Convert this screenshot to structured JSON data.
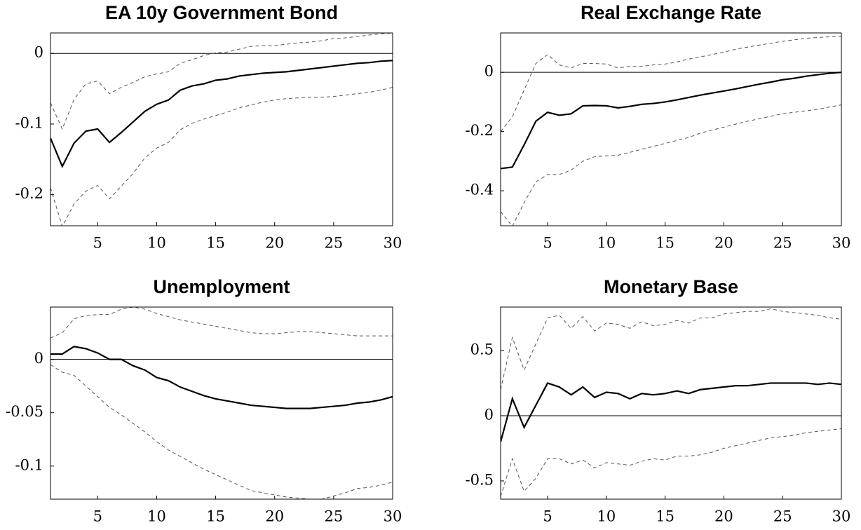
{
  "chart_data": [
    {
      "type": "line",
      "title": "EA 10y Government Bond",
      "x": [
        1,
        2,
        3,
        4,
        5,
        6,
        7,
        8,
        9,
        10,
        11,
        12,
        13,
        14,
        15,
        16,
        17,
        18,
        19,
        20,
        21,
        22,
        23,
        24,
        25,
        26,
        27,
        28,
        29,
        30
      ],
      "xlim": [
        1,
        30
      ],
      "xticks": [
        5,
        10,
        15,
        20,
        25,
        30
      ],
      "ylim": [
        -0.244,
        0.029
      ],
      "yticks": [
        0,
        -0.1,
        -0.2
      ],
      "zero_line": true,
      "series": [
        {
          "color": "#000000",
          "style": "solid",
          "values": [
            -0.12,
            -0.16,
            -0.127,
            -0.11,
            -0.107,
            -0.126,
            -0.112,
            -0.097,
            -0.082,
            -0.072,
            -0.066,
            -0.052,
            -0.046,
            -0.043,
            -0.038,
            -0.036,
            -0.032,
            -0.03,
            -0.028,
            -0.027,
            -0.026,
            -0.024,
            -0.022,
            -0.02,
            -0.018,
            -0.016,
            -0.014,
            -0.013,
            -0.011,
            -0.01
          ]
        },
        {
          "color": "#555555",
          "style": "dashed",
          "values": [
            -0.07,
            -0.107,
            -0.065,
            -0.043,
            -0.039,
            -0.057,
            -0.048,
            -0.041,
            -0.033,
            -0.029,
            -0.026,
            -0.014,
            -0.009,
            -0.003,
            0.001,
            0.002,
            0.006,
            0.01,
            0.011,
            0.011,
            0.013,
            0.015,
            0.016,
            0.018,
            0.021,
            0.022,
            0.024,
            0.026,
            0.028,
            0.029
          ]
        },
        {
          "color": "#555555",
          "style": "dashed",
          "values": [
            -0.19,
            -0.245,
            -0.213,
            -0.195,
            -0.187,
            -0.206,
            -0.188,
            -0.17,
            -0.148,
            -0.134,
            -0.126,
            -0.108,
            -0.099,
            -0.093,
            -0.088,
            -0.083,
            -0.077,
            -0.073,
            -0.069,
            -0.066,
            -0.064,
            -0.063,
            -0.062,
            -0.062,
            -0.061,
            -0.059,
            -0.057,
            -0.055,
            -0.052,
            -0.048
          ]
        }
      ]
    },
    {
      "type": "line",
      "title": "Real Exchange Rate",
      "x": [
        1,
        2,
        3,
        4,
        5,
        6,
        7,
        8,
        9,
        10,
        11,
        12,
        13,
        14,
        15,
        16,
        17,
        18,
        19,
        20,
        21,
        22,
        23,
        24,
        25,
        26,
        27,
        28,
        29,
        30
      ],
      "xlim": [
        1,
        30
      ],
      "xticks": [
        5,
        10,
        15,
        20,
        25,
        30
      ],
      "ylim": [
        -0.518,
        0.133
      ],
      "yticks": [
        0,
        -0.2,
        -0.4
      ],
      "zero_line": true,
      "series": [
        {
          "color": "#000000",
          "style": "solid",
          "values": [
            -0.325,
            -0.32,
            -0.245,
            -0.165,
            -0.135,
            -0.145,
            -0.14,
            -0.113,
            -0.112,
            -0.113,
            -0.12,
            -0.115,
            -0.108,
            -0.105,
            -0.1,
            -0.093,
            -0.085,
            -0.077,
            -0.07,
            -0.063,
            -0.056,
            -0.048,
            -0.04,
            -0.033,
            -0.025,
            -0.02,
            -0.013,
            -0.008,
            -0.003,
            0
          ]
        },
        {
          "color": "#555555",
          "style": "dashed",
          "values": [
            -0.2,
            -0.15,
            -0.06,
            0.03,
            0.06,
            0.025,
            0.015,
            0.03,
            0.03,
            0.028,
            0.015,
            0.02,
            0.02,
            0.025,
            0.028,
            0.035,
            0.045,
            0.052,
            0.06,
            0.068,
            0.078,
            0.085,
            0.092,
            0.098,
            0.105,
            0.11,
            0.115,
            0.118,
            0.12,
            0.122
          ]
        },
        {
          "color": "#555555",
          "style": "dashed",
          "values": [
            -0.47,
            -0.52,
            -0.44,
            -0.37,
            -0.345,
            -0.345,
            -0.33,
            -0.3,
            -0.285,
            -0.282,
            -0.28,
            -0.27,
            -0.26,
            -0.25,
            -0.24,
            -0.23,
            -0.22,
            -0.205,
            -0.195,
            -0.185,
            -0.175,
            -0.165,
            -0.157,
            -0.148,
            -0.14,
            -0.135,
            -0.13,
            -0.125,
            -0.117,
            -0.11
          ]
        }
      ]
    },
    {
      "type": "line",
      "title": "Unemployment",
      "x": [
        1,
        2,
        3,
        4,
        5,
        6,
        7,
        8,
        9,
        10,
        11,
        12,
        13,
        14,
        15,
        16,
        17,
        18,
        19,
        20,
        21,
        22,
        23,
        24,
        25,
        26,
        27,
        28,
        29,
        30
      ],
      "xlim": [
        1,
        30
      ],
      "xticks": [
        5,
        10,
        15,
        20,
        25,
        30
      ],
      "ylim": [
        -0.131,
        0.049
      ],
      "yticks": [
        0,
        -0.05,
        -0.1
      ],
      "zero_line": true,
      "series": [
        {
          "color": "#000000",
          "style": "solid",
          "values": [
            0.005,
            0.005,
            0.012,
            0.01,
            0.006,
            0,
            0,
            -0.006,
            -0.01,
            -0.017,
            -0.02,
            -0.026,
            -0.03,
            -0.034,
            -0.037,
            -0.039,
            -0.041,
            -0.043,
            -0.044,
            -0.045,
            -0.046,
            -0.046,
            -0.046,
            -0.045,
            -0.044,
            -0.043,
            -0.041,
            -0.04,
            -0.038,
            -0.035
          ]
        },
        {
          "color": "#555555",
          "style": "dashed",
          "values": [
            0.02,
            0.025,
            0.038,
            0.041,
            0.042,
            0.042,
            0.047,
            0.049,
            0.047,
            0.043,
            0.04,
            0.037,
            0.035,
            0.033,
            0.031,
            0.029,
            0.027,
            0.025,
            0.024,
            0.024,
            0.025,
            0.026,
            0.026,
            0.025,
            0.024,
            0.023,
            0.022,
            0.022,
            0.022,
            0.022
          ]
        },
        {
          "color": "#555555",
          "style": "dashed",
          "values": [
            -0.005,
            -0.012,
            -0.015,
            -0.025,
            -0.035,
            -0.045,
            -0.052,
            -0.06,
            -0.068,
            -0.077,
            -0.085,
            -0.091,
            -0.097,
            -0.103,
            -0.108,
            -0.113,
            -0.118,
            -0.123,
            -0.125,
            -0.127,
            -0.129,
            -0.13,
            -0.131,
            -0.131,
            -0.128,
            -0.125,
            -0.121,
            -0.12,
            -0.118,
            -0.115
          ]
        }
      ]
    },
    {
      "type": "line",
      "title": "Monetary Base",
      "x": [
        1,
        2,
        3,
        4,
        5,
        6,
        7,
        8,
        9,
        10,
        11,
        12,
        13,
        14,
        15,
        16,
        17,
        18,
        19,
        20,
        21,
        22,
        23,
        24,
        25,
        26,
        27,
        28,
        29,
        30
      ],
      "xlim": [
        1,
        30
      ],
      "xticks": [
        5,
        10,
        15,
        20,
        25,
        30
      ],
      "ylim": [
        -0.64,
        0.833
      ],
      "yticks": [
        0.5,
        0,
        -0.5
      ],
      "zero_line": true,
      "series": [
        {
          "color": "#000000",
          "style": "solid",
          "values": [
            -0.2,
            0.13,
            -0.09,
            0.08,
            0.25,
            0.22,
            0.16,
            0.22,
            0.14,
            0.18,
            0.17,
            0.13,
            0.17,
            0.16,
            0.17,
            0.19,
            0.17,
            0.2,
            0.21,
            0.22,
            0.23,
            0.23,
            0.24,
            0.25,
            0.25,
            0.25,
            0.25,
            0.24,
            0.25,
            0.24
          ]
        },
        {
          "color": "#555555",
          "style": "dashed",
          "values": [
            0.2,
            0.6,
            0.35,
            0.55,
            0.75,
            0.77,
            0.67,
            0.76,
            0.65,
            0.71,
            0.7,
            0.67,
            0.72,
            0.69,
            0.7,
            0.73,
            0.71,
            0.75,
            0.75,
            0.78,
            0.79,
            0.8,
            0.8,
            0.82,
            0.8,
            0.79,
            0.78,
            0.77,
            0.75,
            0.74
          ]
        },
        {
          "color": "#555555",
          "style": "dashed",
          "values": [
            -0.62,
            -0.33,
            -0.58,
            -0.48,
            -0.33,
            -0.33,
            -0.37,
            -0.34,
            -0.4,
            -0.36,
            -0.37,
            -0.38,
            -0.35,
            -0.33,
            -0.34,
            -0.31,
            -0.31,
            -0.3,
            -0.28,
            -0.25,
            -0.23,
            -0.21,
            -0.19,
            -0.17,
            -0.16,
            -0.15,
            -0.13,
            -0.12,
            -0.11,
            -0.1
          ]
        }
      ]
    }
  ]
}
